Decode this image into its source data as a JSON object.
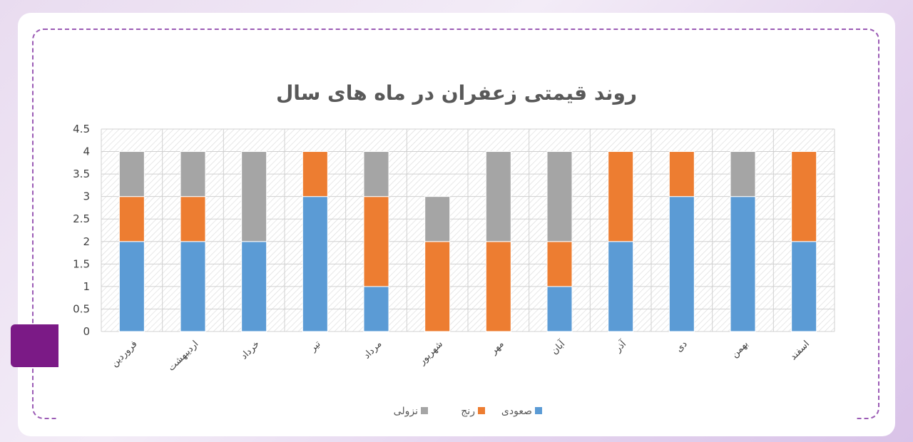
{
  "chart_data": {
    "type": "bar",
    "stacked": true,
    "title": "روند قیمتی زعفران در ماه های سال",
    "categories": [
      "فروردین",
      "اردیبهشت",
      "خرداد",
      "تیر",
      "مرداد",
      "شهریور",
      "مهر",
      "آبان",
      "آذر",
      "دی",
      "بهمن",
      "اسفند"
    ],
    "series": [
      {
        "name": "صعودی",
        "color": "#5b9bd5",
        "values": [
          2,
          2,
          2,
          3,
          1,
          0,
          0,
          1,
          2,
          3,
          3,
          2
        ]
      },
      {
        "name": "رنج",
        "color": "#ed7d31",
        "values": [
          1,
          1,
          0,
          1,
          2,
          2,
          2,
          1,
          2,
          1,
          0,
          2
        ]
      },
      {
        "name": "نزولی",
        "color": "#a5a5a5",
        "values": [
          1,
          1,
          2,
          0,
          1,
          1,
          2,
          2,
          0,
          0,
          1,
          0
        ]
      }
    ],
    "ylim": [
      0,
      4.5
    ],
    "yticks": [
      "0",
      "0.5",
      "1",
      "1.5",
      "2",
      "2.5",
      "3",
      "3.5",
      "4",
      "4.5"
    ],
    "grid": true,
    "legend": "bottom"
  }
}
